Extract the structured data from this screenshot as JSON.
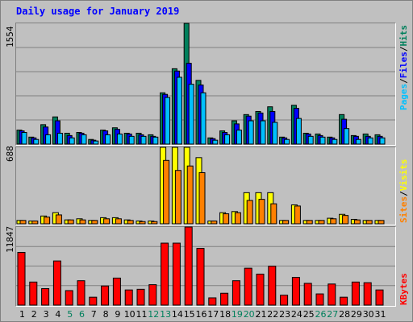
{
  "title": "Daily usage for January 2019",
  "colors": {
    "hits": "#00805c",
    "files": "#0000ff",
    "pages": "#00c0ff",
    "visits": "#ffff00",
    "sites": "#ff8000",
    "kbytes": "#ff0000",
    "weekend_label": "#00805c"
  },
  "panels": {
    "top": {
      "max_label": "1554",
      "legend": [
        "Pages",
        "/",
        "Files",
        "/",
        "Hits"
      ]
    },
    "mid": {
      "max_label": "688",
      "legend": [
        "Sites",
        "/",
        "Visits"
      ]
    },
    "bottom": {
      "max_label": "11847",
      "legend": [
        "KBytes"
      ]
    }
  },
  "chart_data": {
    "type": "bar",
    "title": "Daily usage for January 2019",
    "categories": [
      "1",
      "2",
      "3",
      "4",
      "5",
      "6",
      "7",
      "8",
      "9",
      "10",
      "11",
      "12",
      "13",
      "14",
      "15",
      "16",
      "17",
      "18",
      "19",
      "20",
      "21",
      "22",
      "23",
      "24",
      "25",
      "26",
      "27",
      "28",
      "29",
      "30",
      "31"
    ],
    "weekend_days": [
      "5",
      "6",
      "12",
      "13",
      "19",
      "20",
      "26",
      "27"
    ],
    "grid": true,
    "groups": [
      {
        "name": "Pages / Files / Hits",
        "ylim": [
          0,
          1554
        ],
        "series": [
          {
            "name": "Hits",
            "values": [
              180,
              90,
              250,
              350,
              140,
              150,
              60,
              180,
              210,
              140,
              140,
              120,
              660,
              970,
              1554,
              820,
              80,
              170,
              300,
              380,
              420,
              480,
              90,
              500,
              140,
              130,
              90,
              380,
              110,
              130,
              120
            ]
          },
          {
            "name": "Files",
            "values": [
              170,
              80,
              220,
              300,
              110,
              140,
              50,
              170,
              190,
              130,
              120,
              100,
              640,
              940,
              1040,
              760,
              70,
              150,
              260,
              360,
              400,
              420,
              80,
              460,
              130,
              110,
              80,
              320,
              100,
              100,
              100
            ]
          },
          {
            "name": "Pages",
            "values": [
              150,
              60,
              120,
              140,
              80,
              120,
              40,
              120,
              130,
              100,
              100,
              90,
              600,
              860,
              770,
              660,
              50,
              120,
              180,
              300,
              300,
              280,
              60,
              330,
              100,
              90,
              60,
              200,
              60,
              80,
              80
            ]
          }
        ]
      },
      {
        "name": "Sites / Visits",
        "ylim": [
          0,
          688
        ],
        "series": [
          {
            "name": "Visits",
            "values": [
              30,
              25,
              70,
              100,
              35,
              45,
              30,
              55,
              55,
              35,
              25,
              25,
              688,
              688,
              688,
              595,
              25,
              100,
              110,
              280,
              280,
              280,
              30,
              170,
              30,
              30,
              50,
              85,
              40,
              30,
              30
            ]
          },
          {
            "name": "Sites",
            "values": [
              30,
              25,
              60,
              80,
              35,
              35,
              30,
              45,
              45,
              30,
              20,
              20,
              570,
              480,
              520,
              460,
              25,
              90,
              100,
              210,
              220,
              180,
              30,
              160,
              30,
              30,
              45,
              75,
              35,
              30,
              30
            ]
          }
        ]
      },
      {
        "name": "KBytes",
        "ylim": [
          0,
          11847
        ],
        "series": [
          {
            "name": "KBytes",
            "values": [
              8000,
              3500,
              2500,
              6700,
              2200,
              3700,
              1200,
              2900,
              4100,
              2300,
              2400,
              3100,
              9400,
              9400,
              11847,
              8600,
              1100,
              1800,
              3700,
              5600,
              4700,
              5900,
              1500,
              4200,
              3300,
              1700,
              3200,
              1200,
              3500,
              3400,
              2300
            ]
          }
        ]
      }
    ]
  }
}
